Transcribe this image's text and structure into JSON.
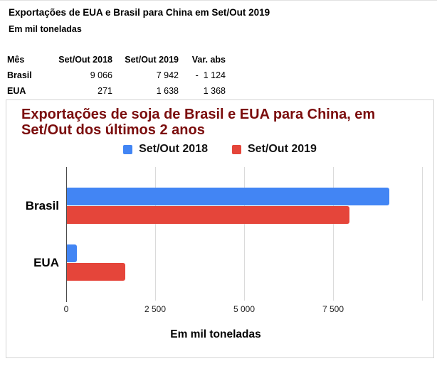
{
  "header": {
    "title": "Exportações de EUA e Brasil para China em Set/Out 2019",
    "subtitle": "Em mil toneladas"
  },
  "table": {
    "columns": [
      "Mês",
      "Set/Out 2018",
      "Set/Out 2019",
      "Var. abs"
    ],
    "rows": [
      {
        "label": "Brasil",
        "values": [
          "9 066",
          "7 942",
          "-  1 124"
        ]
      },
      {
        "label": "EUA",
        "values": [
          "271",
          "1 638",
          "1 368"
        ]
      }
    ]
  },
  "chart_data": {
    "type": "bar",
    "orientation": "horizontal",
    "title": "Exportações de soja de Brasil e EUA para China, em Set/Out dos últimos 2 anos",
    "title_color": "#7b0d0d",
    "xlabel": "Em mil toneladas",
    "categories": [
      "Brasil",
      "EUA"
    ],
    "series": [
      {
        "name": "Set/Out 2018",
        "color": "#4285f4",
        "values": [
          9066,
          271
        ]
      },
      {
        "name": "Set/Out 2019",
        "color": "#e5453a",
        "values": [
          7942,
          1638
        ]
      }
    ],
    "xlim": [
      0,
      10360
    ],
    "gridlines": [
      2500,
      5000,
      7500,
      10000
    ],
    "xticks": [
      {
        "value": 0,
        "label": "0"
      },
      {
        "value": 2500,
        "label": "2 500"
      },
      {
        "value": 5000,
        "label": "5 000"
      },
      {
        "value": 7500,
        "label": "7 500"
      }
    ],
    "grid": true,
    "legend_position": "top"
  }
}
